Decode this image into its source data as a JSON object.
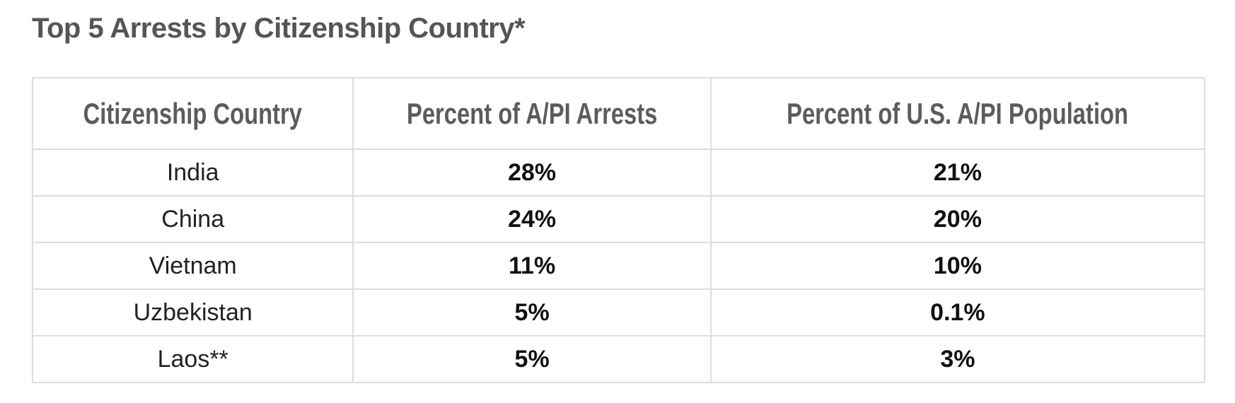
{
  "title": "Top 5 Arrests by Citizenship Country*",
  "table": {
    "headers": [
      "Citizenship Country",
      "Percent of A/PI Arrests",
      "Percent of U.S. A/PI Population"
    ],
    "rows": [
      [
        "India",
        "28%",
        "21%"
      ],
      [
        "China",
        "24%",
        "20%"
      ],
      [
        "Vietnam",
        "11%",
        "10%"
      ],
      [
        "Uzbekistan",
        "5%",
        "0.1%"
      ],
      [
        "Laos**",
        "5%",
        "3%"
      ]
    ]
  }
}
